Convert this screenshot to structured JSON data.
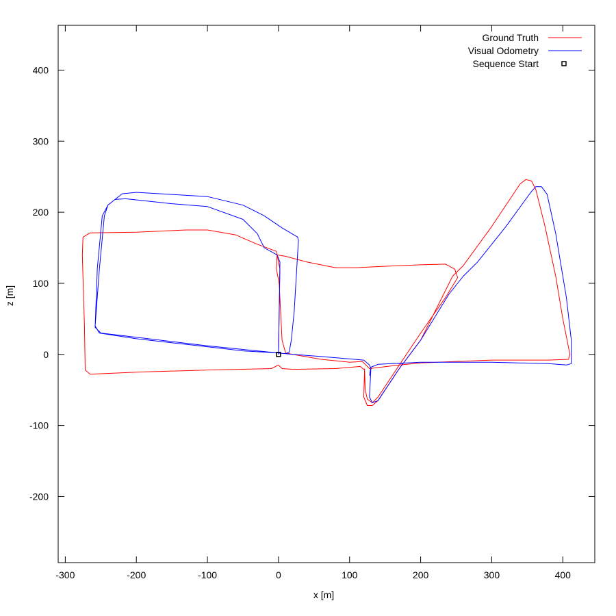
{
  "chart_data": {
    "type": "line",
    "title": "",
    "xlabel": "x [m]",
    "ylabel": "z [m]",
    "xlim": [
      -310,
      445
    ],
    "ylim": [
      -293,
      463
    ],
    "xticks": [
      -300,
      -200,
      -100,
      0,
      100,
      200,
      300,
      400
    ],
    "yticks": [
      -200,
      -100,
      0,
      100,
      200,
      300,
      400
    ],
    "grid": false,
    "legend_position": "top-right",
    "series": [
      {
        "name": "Ground Truth",
        "color": "#ff0000",
        "points": [
          [
            0,
            0
          ],
          [
            2,
            120
          ],
          [
            -3,
            145
          ],
          [
            -30,
            155
          ],
          [
            -60,
            168
          ],
          [
            -100,
            175
          ],
          [
            -130,
            175
          ],
          [
            -200,
            172
          ],
          [
            -265,
            171
          ],
          [
            -275,
            165
          ],
          [
            -276,
            140
          ],
          [
            -273,
            40
          ],
          [
            -272,
            -22
          ],
          [
            -265,
            -28
          ],
          [
            -200,
            -25
          ],
          [
            -100,
            -22
          ],
          [
            -10,
            -20
          ],
          [
            0,
            -15
          ],
          [
            5,
            -20
          ],
          [
            20,
            -21
          ],
          [
            80,
            -20
          ],
          [
            115,
            -17
          ],
          [
            121,
            -22
          ],
          [
            120,
            -60
          ],
          [
            125,
            -72
          ],
          [
            132,
            -72
          ],
          [
            140,
            -65
          ],
          [
            170,
            -20
          ],
          [
            200,
            20
          ],
          [
            245,
            110
          ],
          [
            260,
            125
          ],
          [
            300,
            180
          ],
          [
            340,
            240
          ],
          [
            348,
            246
          ],
          [
            356,
            244
          ],
          [
            362,
            232
          ],
          [
            375,
            180
          ],
          [
            390,
            110
          ],
          [
            400,
            50
          ],
          [
            410,
            0
          ],
          [
            408,
            -7
          ],
          [
            380,
            -8
          ],
          [
            300,
            -8
          ],
          [
            200,
            -12
          ],
          [
            170,
            -15
          ],
          [
            128,
            -20
          ],
          [
            123,
            -15
          ],
          [
            118,
            -10
          ],
          [
            100,
            -11
          ],
          [
            60,
            -7
          ],
          [
            20,
            0
          ],
          [
            10,
            2
          ],
          [
            5,
            20
          ],
          [
            1,
            100
          ],
          [
            -3,
            120
          ],
          [
            -2,
            140
          ],
          [
            10,
            138
          ],
          [
            40,
            130
          ],
          [
            80,
            122
          ],
          [
            110,
            122
          ],
          [
            150,
            124
          ],
          [
            200,
            126
          ],
          [
            235,
            127
          ],
          [
            248,
            120
          ],
          [
            252,
            108
          ],
          [
            235,
            80
          ],
          [
            200,
            30
          ],
          [
            170,
            -15
          ],
          [
            140,
            -60
          ],
          [
            132,
            -68
          ],
          [
            125,
            -63
          ],
          [
            122,
            -50
          ],
          [
            121,
            -20
          ]
        ]
      },
      {
        "name": "Visual Odometry",
        "color": "#0000ff",
        "points": [
          [
            0,
            0
          ],
          [
            2,
            130
          ],
          [
            -2,
            140
          ],
          [
            -20,
            150
          ],
          [
            -30,
            170
          ],
          [
            -50,
            190
          ],
          [
            -100,
            208
          ],
          [
            -150,
            212
          ],
          [
            -215,
            219
          ],
          [
            -230,
            218
          ],
          [
            -240,
            210
          ],
          [
            -245,
            195
          ],
          [
            -252,
            120
          ],
          [
            -258,
            40
          ],
          [
            -252,
            30
          ],
          [
            -200,
            22
          ],
          [
            -120,
            13
          ],
          [
            -50,
            5
          ],
          [
            0,
            2
          ],
          [
            10,
            1
          ],
          [
            15,
            3
          ],
          [
            18,
            20
          ],
          [
            22,
            60
          ],
          [
            28,
            160
          ],
          [
            27,
            165
          ],
          [
            5,
            178
          ],
          [
            -20,
            195
          ],
          [
            -50,
            210
          ],
          [
            -100,
            222
          ],
          [
            -150,
            225
          ],
          [
            -200,
            228
          ],
          [
            -220,
            226
          ],
          [
            -240,
            210
          ],
          [
            -248,
            195
          ],
          [
            -255,
            120
          ],
          [
            -258,
            38
          ],
          [
            -250,
            30
          ],
          [
            -200,
            24
          ],
          [
            -100,
            12
          ],
          [
            -20,
            4
          ],
          [
            0,
            2
          ],
          [
            20,
            0
          ],
          [
            60,
            -3
          ],
          [
            120,
            -8
          ],
          [
            128,
            -15
          ],
          [
            130,
            -20
          ],
          [
            128,
            -60
          ],
          [
            132,
            -68
          ],
          [
            140,
            -65
          ],
          [
            170,
            -20
          ],
          [
            200,
            20
          ],
          [
            240,
            85
          ],
          [
            260,
            110
          ],
          [
            280,
            130
          ],
          [
            320,
            180
          ],
          [
            355,
            228
          ],
          [
            362,
            236
          ],
          [
            370,
            236
          ],
          [
            378,
            225
          ],
          [
            390,
            170
          ],
          [
            405,
            80
          ],
          [
            412,
            20
          ],
          [
            412,
            -13
          ],
          [
            405,
            -15
          ],
          [
            380,
            -13
          ],
          [
            300,
            -11
          ],
          [
            200,
            -11
          ],
          [
            140,
            -14
          ],
          [
            130,
            -18
          ],
          [
            128,
            -30
          ]
        ]
      }
    ],
    "markers": [
      {
        "name": "Sequence Start",
        "point": [
          0,
          0
        ],
        "shape": "open-square",
        "color": "#000000"
      }
    ]
  }
}
